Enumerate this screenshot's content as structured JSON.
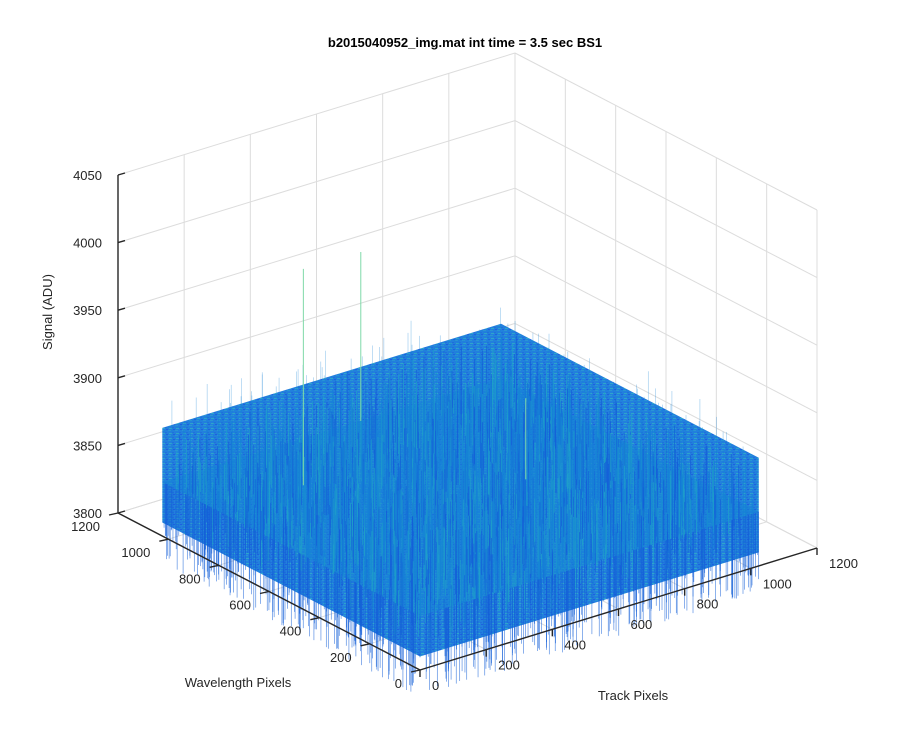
{
  "chart_data": {
    "type": "surface",
    "title": "b2015040952_img.mat int time = 3.5 sec   BS1",
    "xlabel": "Track Pixels",
    "ylabel": "Wavelength Pixels",
    "zlabel": "Signal (ADU)",
    "xlim": [
      0,
      1200
    ],
    "ylim": [
      0,
      1200
    ],
    "zlim": [
      3800,
      4050
    ],
    "x_ticks": [
      "0",
      "200",
      "400",
      "600",
      "800",
      "1000",
      "1200"
    ],
    "y_ticks": [
      "0",
      "200",
      "400",
      "600",
      "800",
      "1000",
      "1200"
    ],
    "z_ticks": [
      "3800",
      "3850",
      "3900",
      "3950",
      "4000",
      "4050"
    ],
    "surface": {
      "x_range": [
        0,
        1024
      ],
      "y_range": [
        0,
        1024
      ],
      "mean_signal": 3840,
      "noise_range": [
        3810,
        3880
      ],
      "outlier_peaks": [
        {
          "x": 256,
          "y": 800,
          "z": 4000
        },
        {
          "x": 600,
          "y": 1024,
          "z": 3965
        },
        {
          "x": 700,
          "y": 500,
          "z": 3900
        }
      ]
    },
    "grid": true,
    "colormap": "parula",
    "colors": {
      "low": "#1560d8",
      "mid": "#1683d6",
      "high": "#1fa0c9",
      "peak": "#7fd9a8"
    }
  }
}
